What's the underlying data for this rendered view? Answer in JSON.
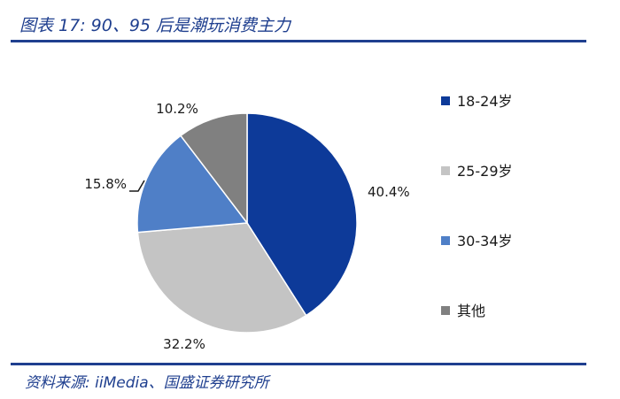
{
  "header": {
    "title": "图表 17:  90、95 后是潮玩消费主力"
  },
  "footer": {
    "source": "资料来源:  iiMedia、国盛证券研究所"
  },
  "chart_data": {
    "type": "pie",
    "categories": [
      "18-24岁",
      "25-29岁",
      "30-34岁",
      "其他"
    ],
    "values": [
      40.4,
      32.2,
      15.8,
      10.2
    ],
    "labels": [
      "40.4%",
      "32.2%",
      "15.8%",
      "10.2%"
    ],
    "colors": [
      "#0d3a99",
      "#c4c4c4",
      "#4f7fc7",
      "#808080"
    ],
    "legend_position": "right"
  }
}
